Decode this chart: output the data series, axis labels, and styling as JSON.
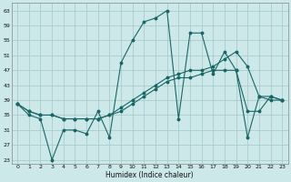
{
  "bg_color": "#cce8e8",
  "grid_color": "#aacccc",
  "line_color": "#1a6666",
  "xlabel": "Humidex (Indice chaleur)",
  "xlim": [
    -0.5,
    23.5
  ],
  "ylim": [
    22,
    65
  ],
  "yticks": [
    23,
    27,
    31,
    35,
    39,
    43,
    47,
    51,
    55,
    59,
    63
  ],
  "xticks": [
    0,
    1,
    2,
    3,
    4,
    5,
    6,
    7,
    8,
    9,
    10,
    11,
    12,
    13,
    14,
    15,
    16,
    17,
    18,
    19,
    20,
    21,
    22,
    23
  ],
  "series": [
    {
      "x": [
        0,
        1,
        2,
        3,
        4,
        5,
        6,
        7,
        8,
        9,
        10,
        11,
        12,
        13,
        14,
        15,
        16,
        17,
        18,
        19,
        20,
        21,
        22,
        23
      ],
      "y": [
        38,
        35,
        34,
        23,
        31,
        31,
        30,
        36,
        29,
        49,
        55,
        60,
        61,
        63,
        34,
        57,
        57,
        46,
        52,
        47,
        29,
        40,
        39,
        39
      ]
    },
    {
      "x": [
        0,
        1,
        2,
        3,
        4,
        5,
        6,
        7,
        8,
        9,
        10,
        11,
        12,
        13,
        14,
        15,
        16,
        17,
        18,
        19,
        20,
        21,
        22,
        23
      ],
      "y": [
        38,
        36,
        35,
        35,
        34,
        34,
        34,
        34,
        35,
        37,
        39,
        41,
        43,
        45,
        46,
        47,
        47,
        48,
        50,
        52,
        48,
        40,
        40,
        39
      ]
    },
    {
      "x": [
        0,
        1,
        2,
        3,
        4,
        5,
        6,
        7,
        8,
        9,
        10,
        11,
        12,
        13,
        14,
        15,
        16,
        17,
        18,
        19,
        20,
        21,
        22,
        23
      ],
      "y": [
        38,
        36,
        35,
        35,
        34,
        34,
        34,
        34,
        35,
        36,
        38,
        40,
        42,
        44,
        45,
        45,
        46,
        47,
        47,
        47,
        36,
        36,
        40,
        39
      ]
    }
  ]
}
